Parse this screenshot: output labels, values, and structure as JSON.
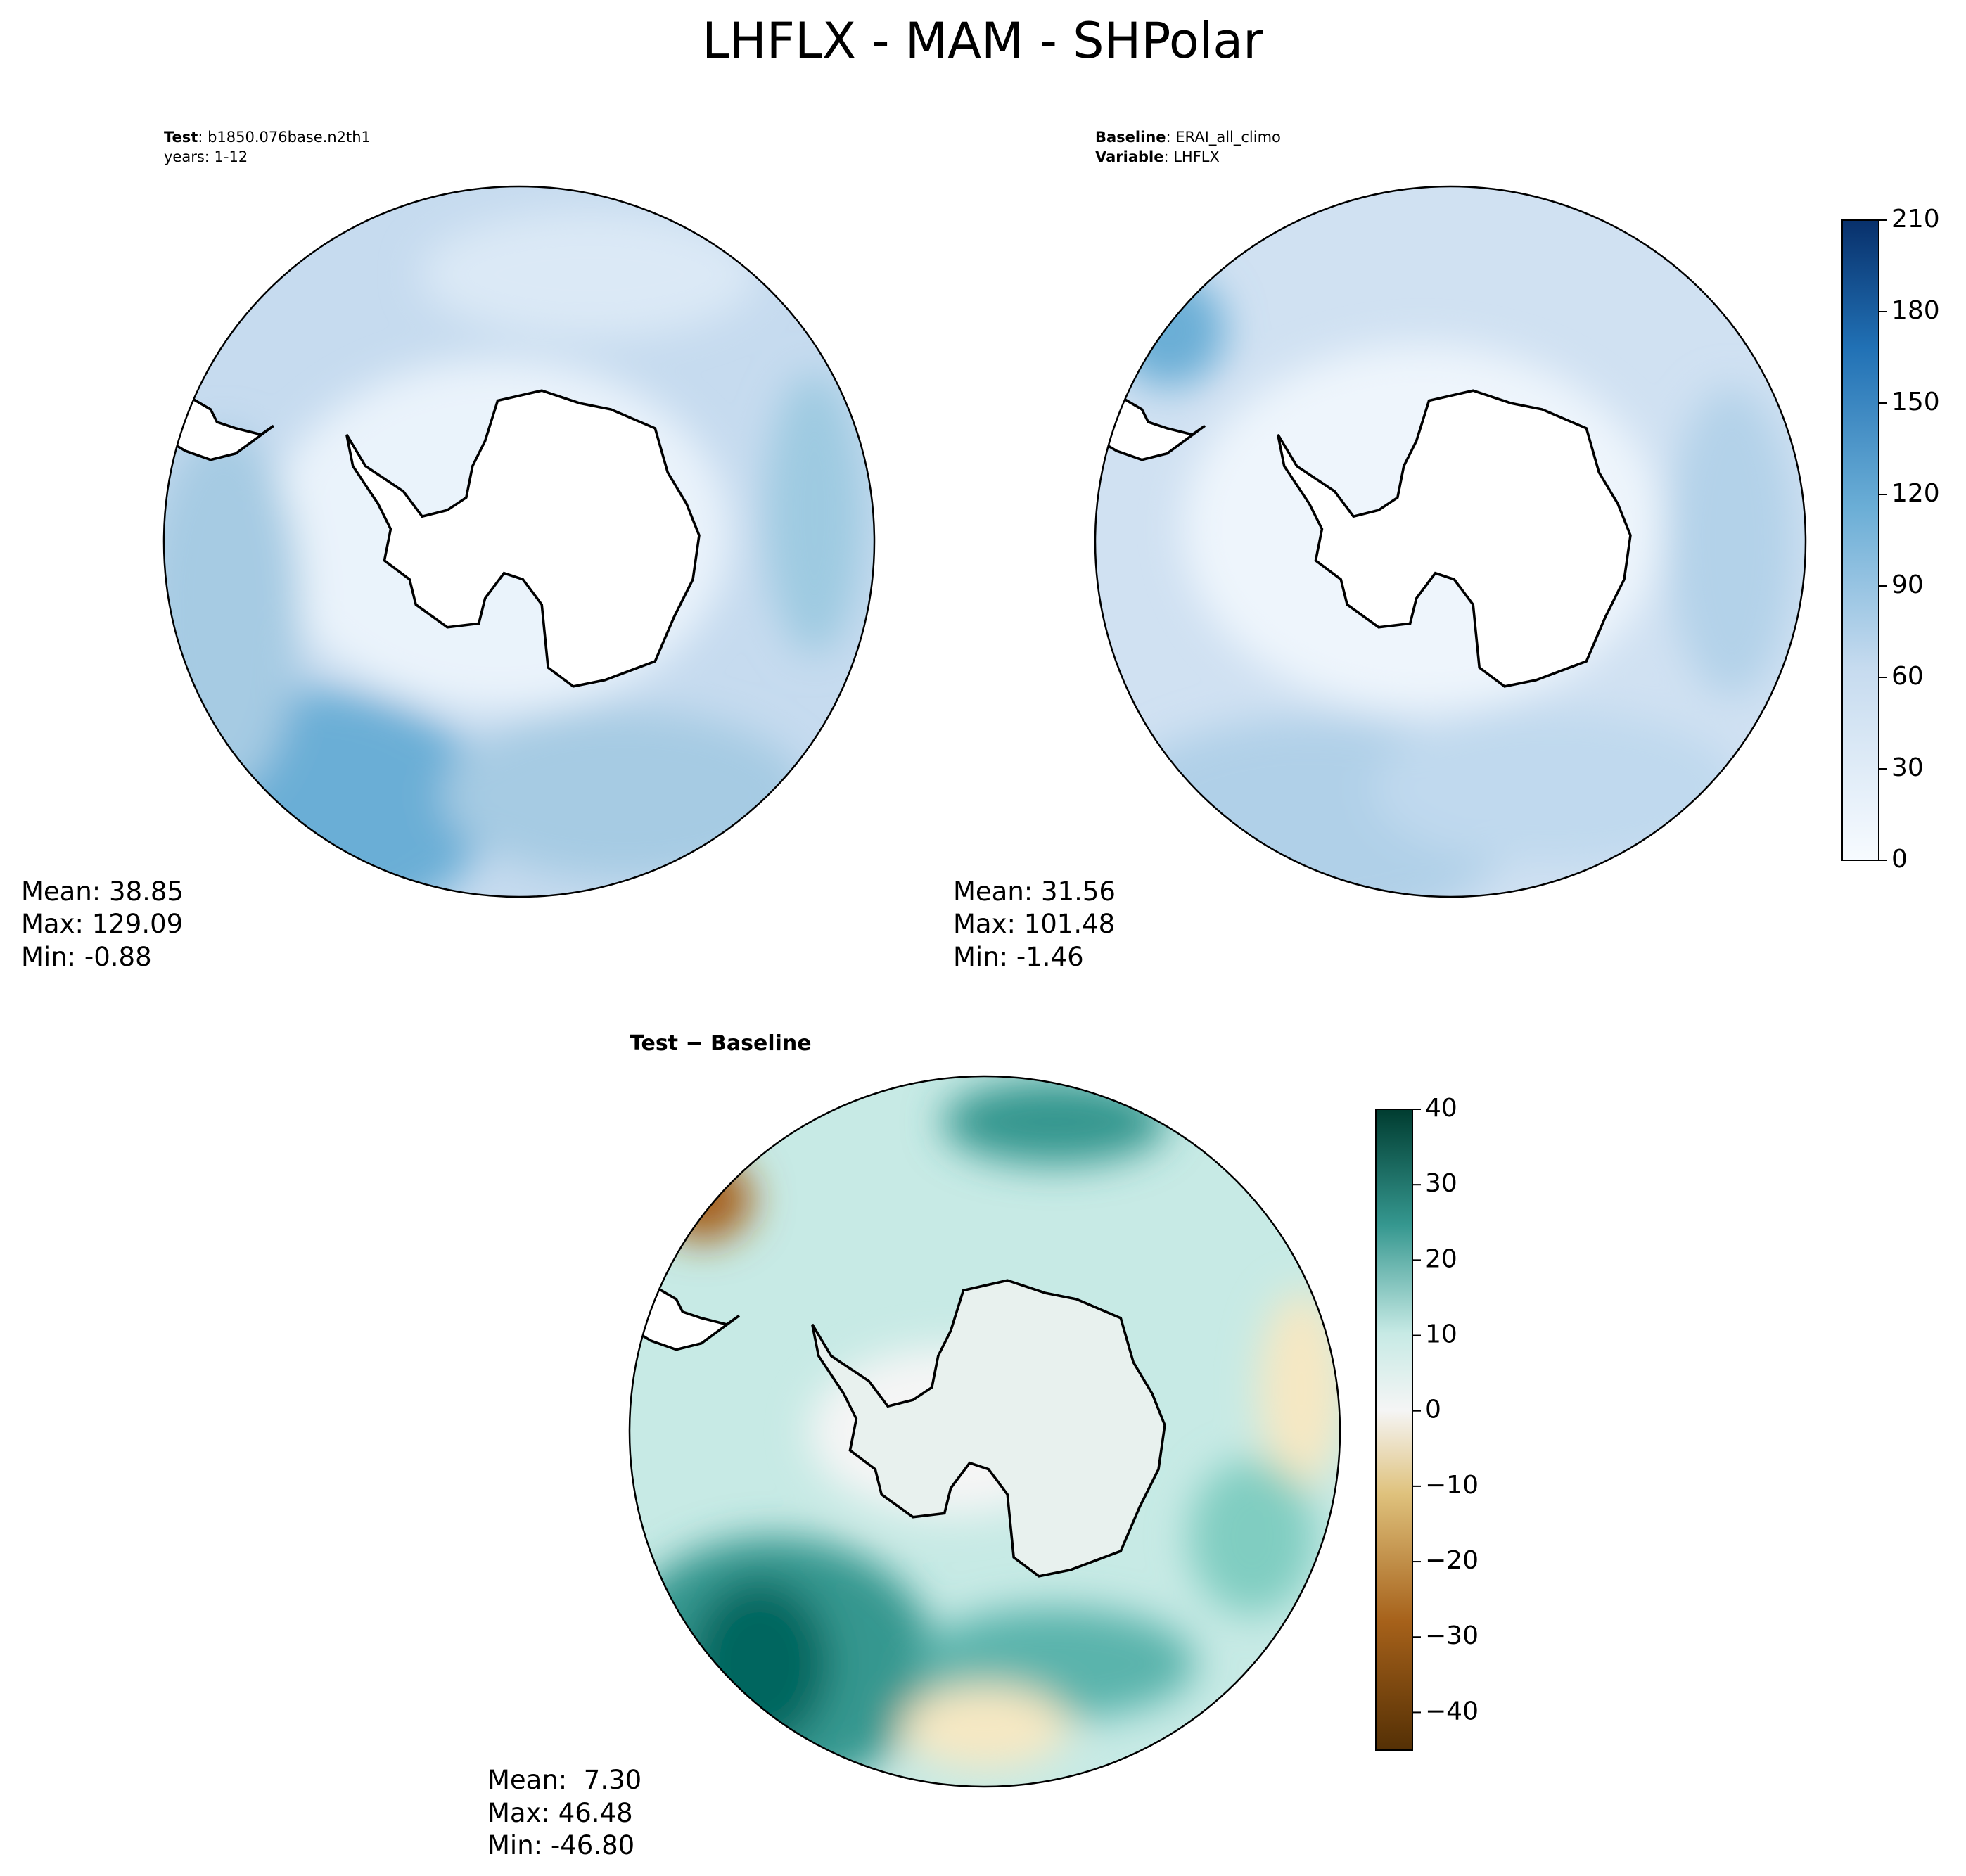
{
  "chart_data": {
    "type": "contour-map",
    "title": "LHFLX - MAM - SHPolar",
    "panels": [
      {
        "header": [
          {
            "bold": "Test",
            "rest": ": b1850.076base.n2th1"
          },
          {
            "rest": "years: 1-12"
          }
        ],
        "stats": [
          "Mean: 38.85",
          "Max: 129.09",
          "Min: -0.88"
        ]
      },
      {
        "header": [
          {
            "bold": "Baseline",
            "rest": ": ERAI_all_climo"
          },
          {
            "bold": "Variable",
            "rest": ": LHFLX"
          }
        ],
        "stats": [
          "Mean: 31.56",
          "Max: 101.48",
          "Min: -1.46"
        ]
      },
      {
        "header": [
          {
            "bold": "Test − Baseline"
          }
        ],
        "stats": [
          "Mean:  7.30",
          "Max: 46.48",
          "Min: -46.80"
        ]
      }
    ],
    "colorbars": [
      {
        "ylim": [
          0,
          210
        ],
        "yticks": [
          0,
          30,
          60,
          90,
          120,
          150,
          180,
          210
        ]
      },
      {
        "ylim": [
          -45,
          40
        ],
        "yticks": [
          {
            "value": -40,
            "label": "−40"
          },
          {
            "value": -30,
            "label": "−30"
          },
          {
            "value": -20,
            "label": "−20"
          },
          {
            "value": -10,
            "label": "−10"
          },
          0,
          10,
          20,
          30,
          40
        ]
      }
    ]
  }
}
